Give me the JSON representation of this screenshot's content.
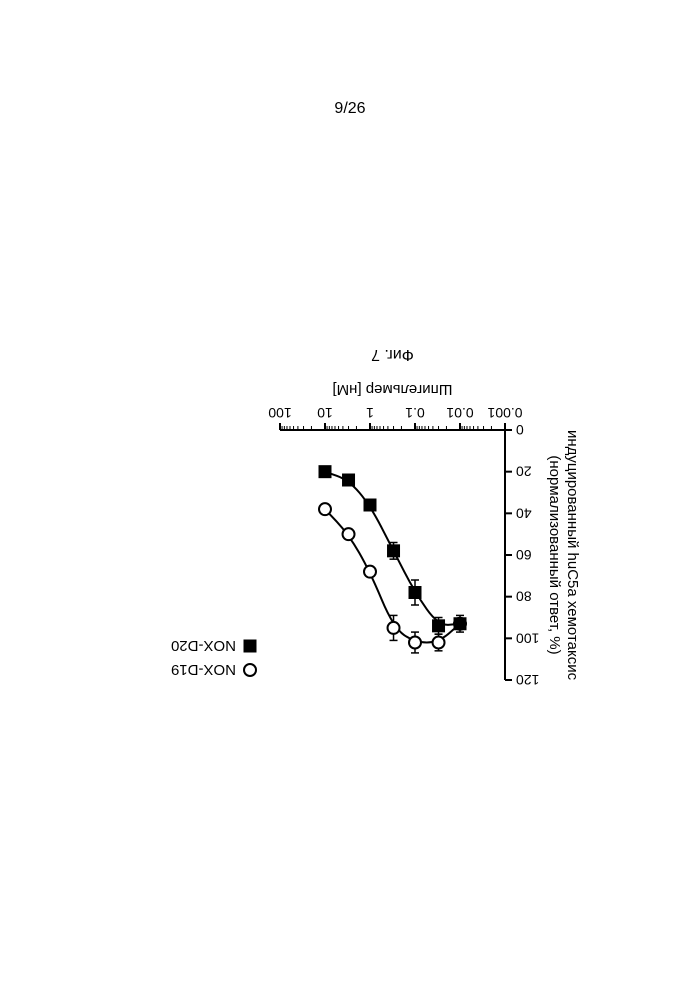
{
  "page_label": "9/26",
  "figure_label": "Фиг. 7",
  "chart": {
    "type": "line-scatter",
    "x_axis": {
      "label": "Шпигельмер [нМ]",
      "scale": "log",
      "lim": [
        0.001,
        100
      ],
      "ticks": [
        0.001,
        0.01,
        0.1,
        1,
        10,
        100
      ],
      "tick_labels": [
        "0.001",
        "0.01",
        "0.1",
        "1",
        "10",
        "100"
      ],
      "fontsize": 14,
      "label_fontsize": 15
    },
    "y_axis": {
      "label_line1": "индуцированный huC5a хемотаксис",
      "label_line2": "(нормализованный ответ, %)",
      "lim": [
        0,
        120
      ],
      "ticks": [
        0,
        20,
        40,
        60,
        80,
        100,
        120
      ],
      "fontsize": 14,
      "label_fontsize": 15
    },
    "series": [
      {
        "name": "NOX-D19",
        "marker": "open-circle",
        "color": "#000000",
        "fill": "#ffffff",
        "line_width": 2,
        "marker_size": 6,
        "points": [
          {
            "x": 0.01,
            "y": 93,
            "err": 0
          },
          {
            "x": 0.03,
            "y": 102,
            "err": 4
          },
          {
            "x": 0.1,
            "y": 102,
            "err": 5
          },
          {
            "x": 0.3,
            "y": 95,
            "err": 6
          },
          {
            "x": 1,
            "y": 68,
            "err": 0
          },
          {
            "x": 3,
            "y": 50,
            "err": 0
          },
          {
            "x": 10,
            "y": 38,
            "err": 0
          }
        ]
      },
      {
        "name": "NOX-D20",
        "marker": "filled-square",
        "color": "#000000",
        "fill": "#000000",
        "line_width": 2,
        "marker_size": 6,
        "points": [
          {
            "x": 0.01,
            "y": 93,
            "err": 4
          },
          {
            "x": 0.03,
            "y": 94,
            "err": 4
          },
          {
            "x": 0.1,
            "y": 78,
            "err": 6
          },
          {
            "x": 0.3,
            "y": 58,
            "err": 4
          },
          {
            "x": 1,
            "y": 36,
            "err": 0
          },
          {
            "x": 3,
            "y": 24,
            "err": 0
          },
          {
            "x": 10,
            "y": 20,
            "err": 0
          }
        ]
      }
    ],
    "legend": {
      "position": "right-top",
      "fontsize": 15
    },
    "colors": {
      "axis": "#000000",
      "text": "#000000",
      "background": "#ffffff"
    }
  }
}
